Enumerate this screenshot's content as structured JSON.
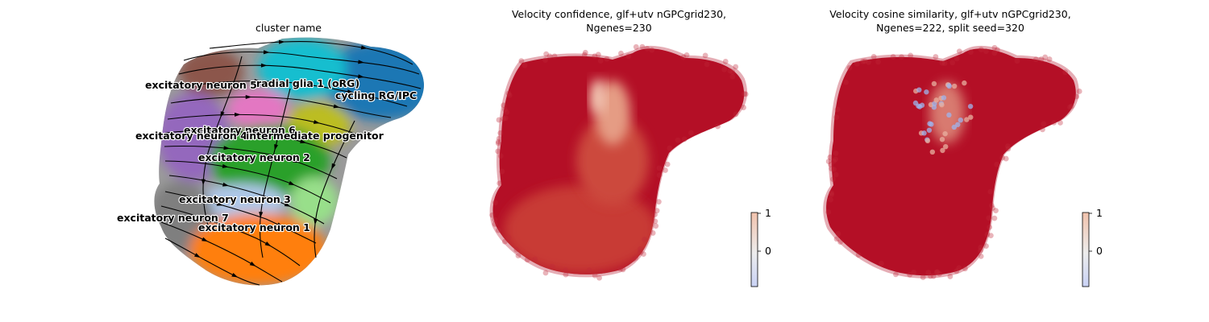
{
  "panels": [
    {
      "title": "cluster name",
      "type": "umap-velocity-stream",
      "clusters": [
        {
          "name": "radial glia 1 (oRG)",
          "color": "#17becf"
        },
        {
          "name": "cycling RG/IPC",
          "color": "#1f77b4"
        },
        {
          "name": "excitatory neuron 5",
          "color": "#8c564b"
        },
        {
          "name": "excitatory neuron 6",
          "color": "#bcbd22"
        },
        {
          "name": "excitatory neuron 4",
          "color": "#9467bd"
        },
        {
          "name": "intermediate progenitor",
          "color": "#e377c2"
        },
        {
          "name": "excitatory neuron 2",
          "color": "#2ca02c"
        },
        {
          "name": "excitatory neuron 3",
          "color": "#aec7e8"
        },
        {
          "name": "excitatory neuron 7",
          "color": "#7f7f7f"
        },
        {
          "name": "excitatory neuron 1",
          "color": "#ff7f0e"
        }
      ],
      "label_texts": {
        "en5": "excitatory neuron 5",
        "rg1": "radial glia 1 (oRG)",
        "cyc": "cycling RG/IPC",
        "en6": "excitatory neuron 6",
        "en4ip": "excitatory neuron 4",
        "ip": "intermediate progenitor",
        "en2": "excitatory neuron 2",
        "en3": "excitatory neuron 3",
        "en7": "excitatory neuron 7",
        "en1": "excitatory neuron 1"
      }
    },
    {
      "title_line1": "Velocity confidence, glf+utv nGPCgrid230,",
      "title_line2": "Ngenes=230",
      "type": "umap-scatter-continuous",
      "colormap": "coolwarm",
      "colorbar": {
        "ticks": [
          "1",
          "0"
        ],
        "min": -0.8,
        "max": 1
      }
    },
    {
      "title_line1": "Velocity cosine similarity, glf+utv nGPCgrid230,",
      "title_line2": "Ngenes=222, split seed=320",
      "type": "umap-scatter-continuous",
      "colormap": "coolwarm",
      "colorbar": {
        "ticks": [
          "1",
          "0"
        ],
        "min": -0.8,
        "max": 1
      }
    }
  ],
  "chart_data": [
    {
      "type": "scatter",
      "title": "cluster name",
      "categories": [
        "radial glia 1 (oRG)",
        "cycling RG/IPC",
        "excitatory neuron 5",
        "excitatory neuron 6",
        "excitatory neuron 4",
        "intermediate progenitor",
        "excitatory neuron 2",
        "excitatory neuron 3",
        "excitatory neuron 7",
        "excitatory neuron 1"
      ],
      "overlay": "velocity streamlines"
    },
    {
      "type": "scatter",
      "title": "Velocity confidence, glf+utv nGPCgrid230, Ngenes=230",
      "colorbar_ticks": [
        1,
        0
      ]
    },
    {
      "type": "scatter",
      "title": "Velocity cosine similarity, glf+utv nGPCgrid230, Ngenes=222, split seed=320",
      "colorbar_ticks": [
        1,
        0
      ]
    }
  ]
}
